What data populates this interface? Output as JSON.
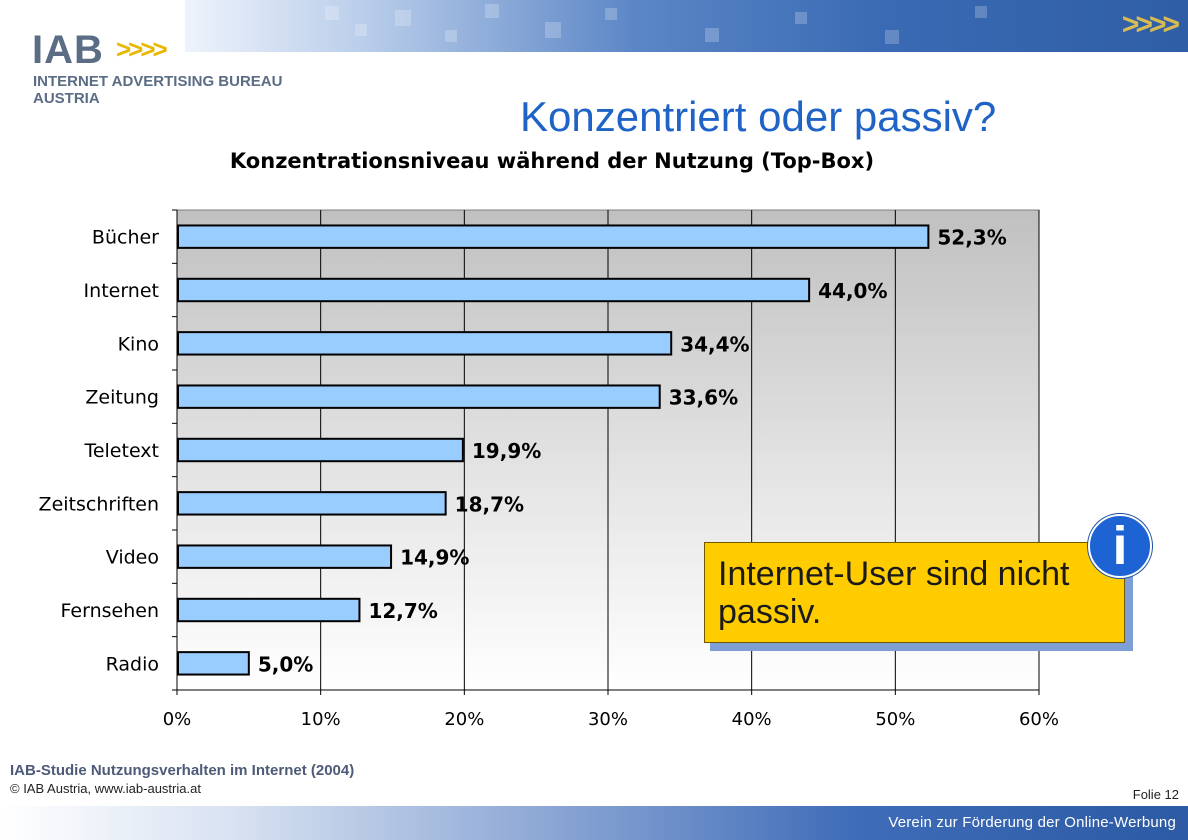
{
  "header": {
    "logo_wordmark": "IAB",
    "logo_chevrons": ">>>>",
    "logo_line1": "INTERNET ADVERTISING BUREAU",
    "logo_line2": "AUSTRIA",
    "banner_chevrons": ">>>>"
  },
  "slide": {
    "title": "Konzentriert oder passiv?"
  },
  "callout": {
    "text": "Internet-User sind nicht passiv.",
    "icon": "info-icon",
    "icon_glyph": "i"
  },
  "footer": {
    "source": "IAB-Studie Nutzungsverhalten im Internet (2004)",
    "copyright": "© IAB Austria, www.iab-austria.at",
    "slide_number": "Folie 12",
    "banner_text": "Verein zur Förderung der Online-Werbung"
  },
  "colors": {
    "bar_fill": "#99ccff",
    "plot_area_top": "#c0c0c0",
    "plot_area_bottom": "#ffffff",
    "title_blue": "#1f63c6",
    "callout_fill": "#ffcc00",
    "info_icon": "#1e63d4"
  },
  "chart_data": {
    "type": "bar",
    "orientation": "horizontal",
    "title": "Konzentrationsniveau während der Nutzung (Top-Box)",
    "categories": [
      "Bücher",
      "Internet",
      "Kino",
      "Zeitung",
      "Teletext",
      "Zeitschriften",
      "Video",
      "Fernsehen",
      "Radio"
    ],
    "values": [
      52.3,
      44.0,
      34.4,
      33.6,
      19.9,
      18.7,
      14.9,
      12.7,
      5.0
    ],
    "data_labels": [
      "52,3%",
      "44,0%",
      "34,4%",
      "33,6%",
      "19,9%",
      "18,7%",
      "14,9%",
      "12,7%",
      "5,0%"
    ],
    "x_ticks": [
      "0%",
      "10%",
      "20%",
      "30%",
      "40%",
      "50%",
      "60%"
    ],
    "xlim": [
      0,
      60
    ],
    "unit": "%",
    "grid": true,
    "legend": "none"
  }
}
